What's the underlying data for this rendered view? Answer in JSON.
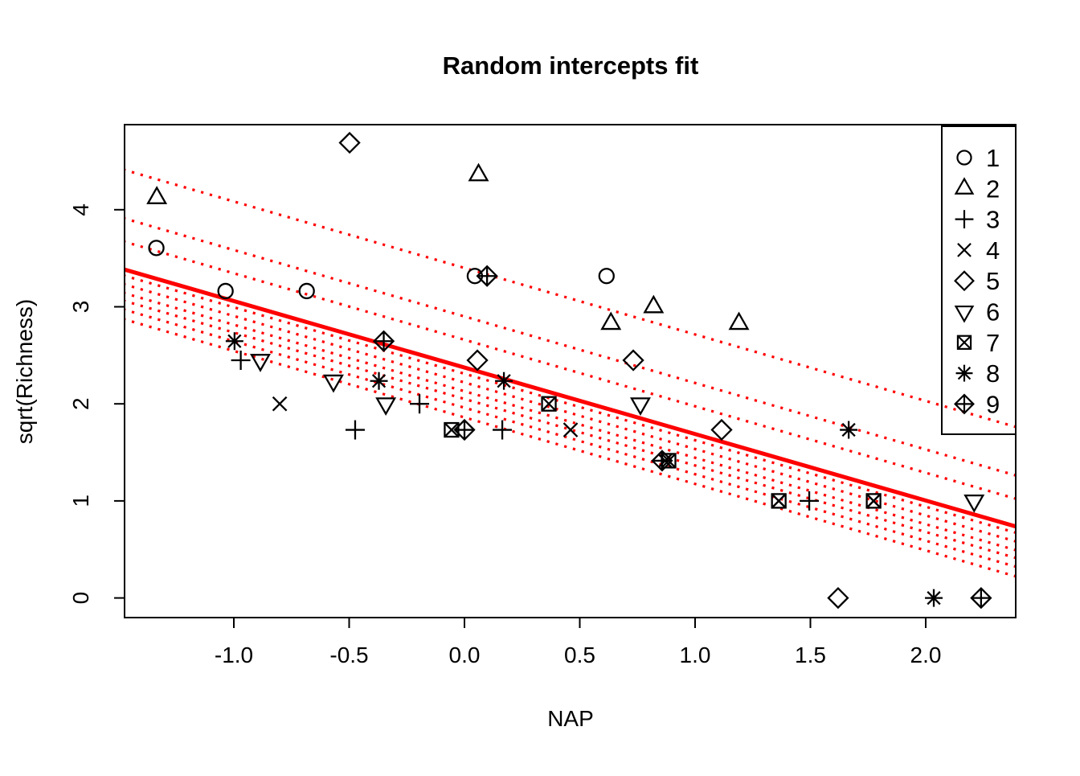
{
  "chart_data": {
    "type": "scatter",
    "title": "Random intercepts fit",
    "xlabel": "NAP",
    "ylabel": "sqrt(Richness)",
    "xlim": [
      -1.47,
      2.39
    ],
    "ylim": [
      -0.2,
      4.88
    ],
    "grid": false,
    "legend_position": "top-right",
    "line_color": "#FF0000",
    "point_color": "#000000",
    "x_ticks": [
      {
        "value": -1.0,
        "label": "-1.0"
      },
      {
        "value": -0.5,
        "label": "-0.5"
      },
      {
        "value": 0.0,
        "label": "0.0"
      },
      {
        "value": 0.5,
        "label": "0.5"
      },
      {
        "value": 1.0,
        "label": "1.0"
      },
      {
        "value": 1.5,
        "label": "1.5"
      },
      {
        "value": 2.0,
        "label": "2.0"
      }
    ],
    "y_ticks": [
      {
        "value": 0,
        "label": "0"
      },
      {
        "value": 1,
        "label": "1"
      },
      {
        "value": 2,
        "label": "2"
      },
      {
        "value": 3,
        "label": "3"
      },
      {
        "value": 4,
        "label": "4"
      }
    ],
    "series": [
      {
        "name": "1",
        "symbol": "circle",
        "points": [
          [
            -1.336,
            3.606
          ],
          [
            -1.036,
            3.162
          ],
          [
            -0.684,
            3.162
          ],
          [
            0.045,
            3.317
          ],
          [
            0.616,
            3.317
          ]
        ]
      },
      {
        "name": "2",
        "symbol": "triangle-up",
        "points": [
          [
            -1.334,
            4.123
          ],
          [
            0.061,
            4.359
          ],
          [
            0.635,
            2.828
          ],
          [
            0.82,
            3.0
          ],
          [
            1.19,
            2.828
          ]
        ]
      },
      {
        "name": "3",
        "symbol": "plus",
        "points": [
          [
            -0.97,
            2.449
          ],
          [
            -0.474,
            1.732
          ],
          [
            -0.195,
            2.0
          ],
          [
            0.164,
            1.732
          ],
          [
            1.495,
            1.0
          ]
        ]
      },
      {
        "name": "4",
        "symbol": "cross",
        "points": [
          [
            -0.801,
            2.0
          ],
          [
            0.46,
            1.732
          ],
          [
            0.87,
            1.414
          ],
          [
            1.363,
            1.0
          ],
          [
            1.774,
            1.0
          ]
        ]
      },
      {
        "name": "5",
        "symbol": "diamond",
        "points": [
          [
            -0.498,
            4.69
          ],
          [
            0.056,
            2.449
          ],
          [
            0.732,
            2.449
          ],
          [
            1.115,
            1.732
          ],
          [
            1.62,
            0.0
          ]
        ]
      },
      {
        "name": "6",
        "symbol": "triangle-down",
        "points": [
          [
            -0.885,
            2.449
          ],
          [
            -0.568,
            2.236
          ],
          [
            -0.341,
            2.0
          ],
          [
            0.763,
            2.0
          ],
          [
            2.21,
            1.0
          ]
        ]
      },
      {
        "name": "7",
        "symbol": "square-cross",
        "points": [
          [
            -0.056,
            1.732
          ],
          [
            0.366,
            2.0
          ],
          [
            0.885,
            1.414
          ],
          [
            1.363,
            1.0
          ],
          [
            1.774,
            1.0
          ]
        ]
      },
      {
        "name": "8",
        "symbol": "asterisk",
        "points": [
          [
            -0.997,
            2.646
          ],
          [
            -0.371,
            2.236
          ],
          [
            0.171,
            2.236
          ],
          [
            1.666,
            1.732
          ],
          [
            2.035,
            0.0
          ]
        ]
      },
      {
        "name": "9",
        "symbol": "diamond-plus",
        "points": [
          [
            -0.35,
            2.646
          ],
          [
            0.0,
            1.732
          ],
          [
            0.098,
            3.317
          ],
          [
            0.857,
            1.414
          ],
          [
            2.24,
            0.0
          ]
        ]
      }
    ],
    "fixed_line": {
      "intercept": 2.374,
      "slope": -0.685,
      "style": "solid"
    },
    "random_intercept_lines": {
      "slope": -0.685,
      "style": "dotted",
      "intercepts": [
        3.4,
        2.9,
        2.66,
        2.31,
        2.22,
        2.13,
        2.05,
        1.96,
        1.86
      ]
    }
  },
  "legend": {
    "items": [
      {
        "symbol": "circle",
        "label": "1"
      },
      {
        "symbol": "triangle-up",
        "label": "2"
      },
      {
        "symbol": "plus",
        "label": "3"
      },
      {
        "symbol": "cross",
        "label": "4"
      },
      {
        "symbol": "diamond",
        "label": "5"
      },
      {
        "symbol": "triangle-down",
        "label": "6"
      },
      {
        "symbol": "square-cross",
        "label": "7"
      },
      {
        "symbol": "asterisk",
        "label": "8"
      },
      {
        "symbol": "diamond-plus",
        "label": "9"
      }
    ]
  }
}
